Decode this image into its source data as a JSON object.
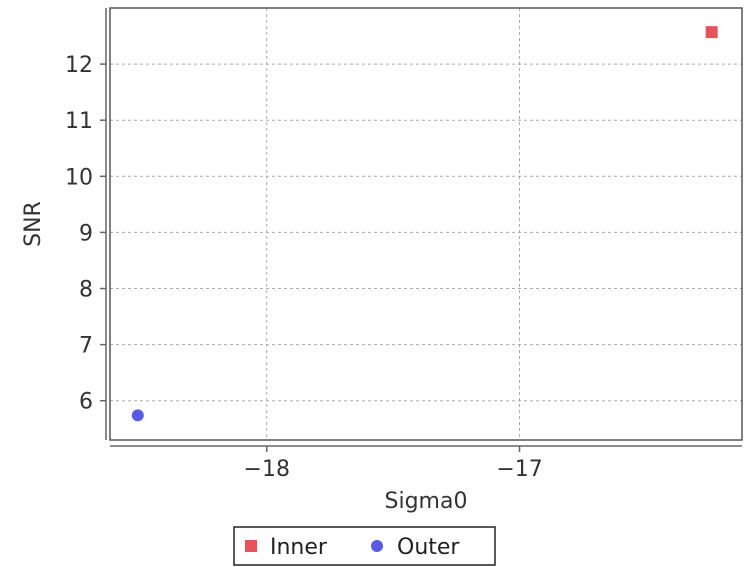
{
  "chart_data": {
    "type": "scatter",
    "xlabel": "Sigma0",
    "ylabel": "SNR",
    "xlim": [
      -18.62,
      -16.12
    ],
    "ylim": [
      5.3,
      13.0
    ],
    "xticks": [
      -18,
      -17
    ],
    "yticks": [
      6,
      7,
      8,
      9,
      10,
      11,
      12
    ],
    "grid": true,
    "legend": "bottom",
    "series": [
      {
        "name": "Inner",
        "marker": "square",
        "color": "#e8525a",
        "points": [
          {
            "x": -16.24,
            "y": 12.57
          }
        ]
      },
      {
        "name": "Outer",
        "marker": "circle",
        "color": "#5a5ae6",
        "points": [
          {
            "x": -18.51,
            "y": 5.74
          }
        ]
      }
    ]
  }
}
